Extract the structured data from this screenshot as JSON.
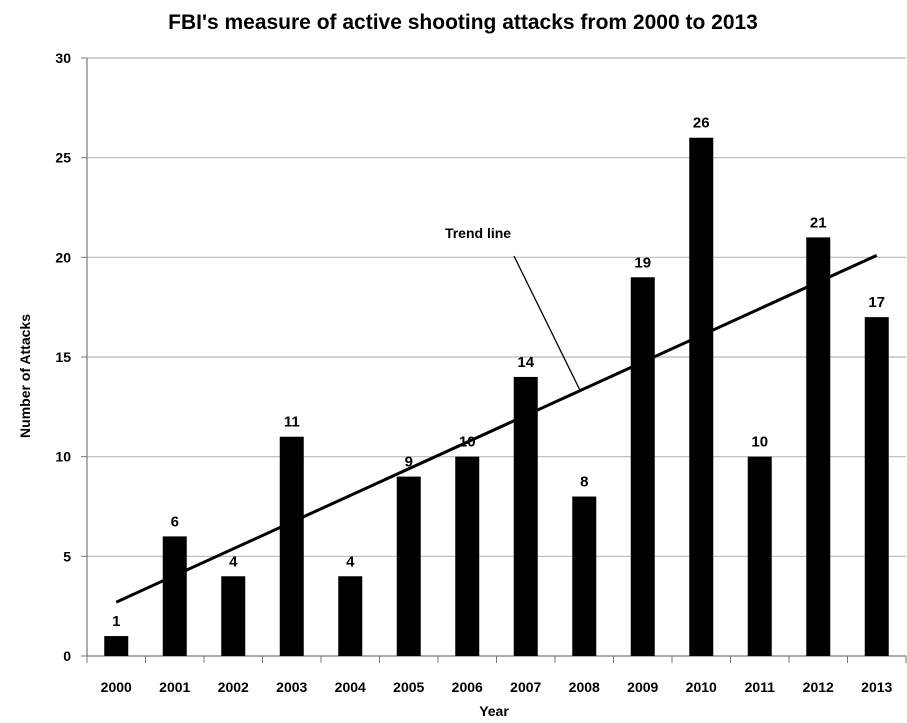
{
  "chart_data": {
    "type": "bar",
    "title": "FBI's measure of active shooting attacks from 2000 to 2013",
    "xlabel": "Year",
    "ylabel": "Number of Attacks",
    "categories": [
      "2000",
      "2001",
      "2002",
      "2003",
      "2004",
      "2005",
      "2006",
      "2007",
      "2008",
      "2009",
      "2010",
      "2011",
      "2012",
      "2013"
    ],
    "values": [
      1,
      6,
      4,
      11,
      4,
      9,
      10,
      14,
      8,
      19,
      26,
      10,
      21,
      17
    ],
    "ylim": [
      0,
      30
    ],
    "yticks": [
      0,
      5,
      10,
      15,
      20,
      25,
      30
    ],
    "grid": true,
    "legend": "none",
    "bar_color": "#000000",
    "trend_line": {
      "label": "Trend line",
      "start": {
        "x": "2000",
        "y": 2.7
      },
      "end": {
        "x": "2013",
        "y": 20.1
      },
      "color": "#000000"
    }
  }
}
